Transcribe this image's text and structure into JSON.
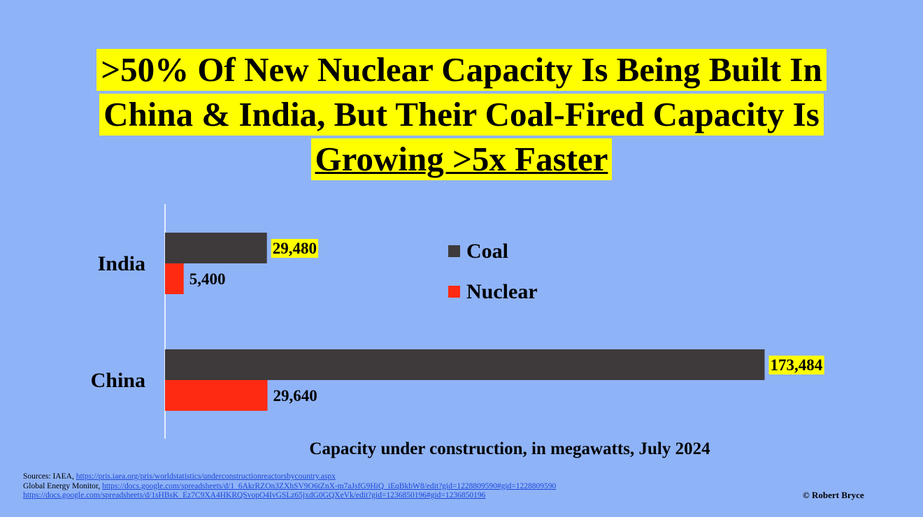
{
  "title": {
    "line1": ">50% Of New Nuclear Capacity Is Being Built In",
    "line2": "China & India, But Their Coal-Fired Capacity Is",
    "line3": "Growing >5x Faster"
  },
  "colors": {
    "background": "#8fb3f7",
    "coal": "#3e3a3b",
    "nuclear": "#ff2a12",
    "highlight": "#ffff00",
    "link": "#1a47d6"
  },
  "chart_data": {
    "type": "bar",
    "orientation": "horizontal",
    "title": ">50% Of New Nuclear Capacity Is Being Built In China & India, But Their Coal-Fired Capacity Is Growing >5x Faster",
    "categories": [
      "India",
      "China"
    ],
    "series": [
      {
        "name": "Coal",
        "values": [
          29480,
          173484
        ],
        "labels": [
          "29,480",
          "173,484"
        ],
        "highlighted": true
      },
      {
        "name": "Nuclear",
        "values": [
          5400,
          29640
        ],
        "labels": [
          "5,400",
          "29,640"
        ],
        "highlighted": false
      }
    ],
    "xlabel": "Capacity under construction, in megawatts, July 2024",
    "ylabel": "",
    "xlim": [
      0,
      175000
    ],
    "grid": false,
    "legend": "top-right"
  },
  "sources": {
    "iaea_prefix": "Sources: IAEA,",
    "iaea_url": "https://pris.iaea.org/pris/worldstatistics/underconstructionreactorsbycountry.aspx",
    "gem_prefix": "Global Energy Monitor,",
    "gem_url1": "https://docs.google.com/spreadsheets/d/1_6AkrRZOn3ZXhSV9O6tZnX-m7aJsfG9HiQ_iEqBkbW8/edit?gid=1228809590#gid=1228809590",
    "gem_url2": "https://docs.google.com/spreadsheets/d/1sHBsK_Ez7C9XA4HKRQSvopO4IvGSLz65jxdG0GQXeVk/edit?gid=1236850196#gid=1236850196"
  },
  "credit": "© Robert Bryce"
}
